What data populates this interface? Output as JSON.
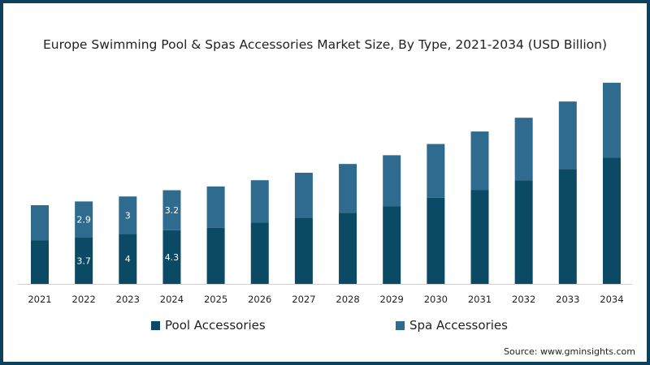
{
  "chart_data": {
    "type": "bar",
    "stacked": true,
    "title": "Europe Swimming Pool & Spas Accessories Market Size, By Type, 2021-2034 (USD Billion)",
    "xlabel": "",
    "ylabel": "",
    "ylim": [
      0,
      16.5
    ],
    "grid": false,
    "legend_position": "bottom",
    "categories": [
      "2021",
      "2022",
      "2023",
      "2024",
      "2025",
      "2026",
      "2027",
      "2028",
      "2029",
      "2030",
      "2031",
      "2032",
      "2033",
      "2034"
    ],
    "series": [
      {
        "name": "Pool Accessories",
        "color": "#0b4a64",
        "values": [
          3.5,
          3.7,
          4,
          4.3,
          4.5,
          4.9,
          5.3,
          5.7,
          6.2,
          6.9,
          7.5,
          8.3,
          9.2,
          10.1
        ],
        "labels": [
          "",
          "3.7",
          "4",
          "4.3",
          "",
          "",
          "",
          "",
          "",
          "",
          "",
          "",
          "",
          ""
        ]
      },
      {
        "name": "Spa Accessories",
        "color": "#2e6b8e",
        "values": [
          2.8,
          2.9,
          3,
          3.2,
          3.3,
          3.4,
          3.6,
          3.9,
          4.1,
          4.3,
          4.7,
          5.0,
          5.4,
          6.0
        ],
        "labels": [
          "",
          "2.9",
          "3",
          "3.2",
          "",
          "",
          "",
          "",
          "",
          "",
          "",
          "",
          "",
          ""
        ]
      }
    ]
  },
  "source": "Source: www.gminsights.com"
}
